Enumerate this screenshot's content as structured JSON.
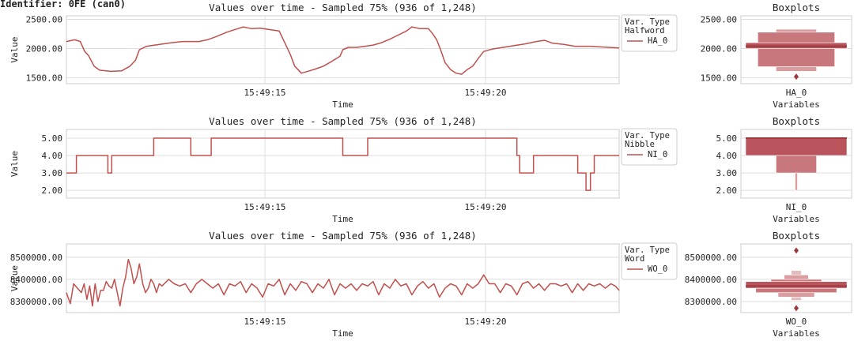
{
  "header": {
    "identifier": "Identifier: 0FE (can0)"
  },
  "colors": {
    "series": "#c0504d",
    "box_dark": "#9e3a3e",
    "grid": "#dddddd",
    "frame": "#cccccc"
  },
  "chart_data": [
    {
      "type": "line",
      "title": "Values over time - Sampled 75% (936 of 1,248)",
      "xlabel": "Time",
      "ylabel": "Value",
      "x_ticks": [
        "15:49:15",
        "15:49:20"
      ],
      "y_ticks": [
        "1500.00",
        "2000.00",
        "2500.00"
      ],
      "ylim": [
        1400,
        2560
      ],
      "legend": {
        "title": "Var. Type\nHalfword",
        "placement": "right",
        "entries": [
          "HA_0"
        ]
      },
      "series": [
        {
          "name": "HA_0",
          "points": [
            [
              0,
              2120
            ],
            [
              1.5,
              2150
            ],
            [
              2.5,
              2120
            ],
            [
              3.3,
              1950
            ],
            [
              4,
              1880
            ],
            [
              5,
              1700
            ],
            [
              6,
              1630
            ],
            [
              8,
              1610
            ],
            [
              10,
              1620
            ],
            [
              11.5,
              1700
            ],
            [
              12.5,
              1800
            ],
            [
              13.2,
              1980
            ],
            [
              14.5,
              2040
            ],
            [
              16,
              2060
            ],
            [
              19,
              2100
            ],
            [
              21,
              2120
            ],
            [
              24,
              2120
            ],
            [
              25.5,
              2150
            ],
            [
              27,
              2200
            ],
            [
              29,
              2280
            ],
            [
              31,
              2340
            ],
            [
              32,
              2370
            ],
            [
              33.5,
              2340
            ],
            [
              35,
              2350
            ],
            [
              37,
              2320
            ],
            [
              38.5,
              2300
            ],
            [
              39.5,
              2100
            ],
            [
              40.5,
              1900
            ],
            [
              41.3,
              1700
            ],
            [
              42.5,
              1580
            ],
            [
              44,
              1620
            ],
            [
              45,
              1650
            ],
            [
              46.5,
              1700
            ],
            [
              48,
              1780
            ],
            [
              49.5,
              1870
            ],
            [
              50,
              1980
            ],
            [
              51,
              2020
            ],
            [
              52.5,
              2020
            ],
            [
              54,
              2040
            ],
            [
              55.5,
              2060
            ],
            [
              57,
              2100
            ],
            [
              58.5,
              2160
            ],
            [
              60,
              2230
            ],
            [
              61.5,
              2300
            ],
            [
              62.5,
              2370
            ],
            [
              64,
              2340
            ],
            [
              65.5,
              2340
            ],
            [
              66.2,
              2260
            ],
            [
              67,
              2150
            ],
            [
              67.7,
              1980
            ],
            [
              68.5,
              1760
            ],
            [
              69.5,
              1640
            ],
            [
              70.5,
              1580
            ],
            [
              71.5,
              1560
            ],
            [
              72.5,
              1640
            ],
            [
              73.5,
              1700
            ],
            [
              74.5,
              1830
            ],
            [
              75.5,
              1950
            ],
            [
              77,
              1990
            ],
            [
              79,
              2020
            ],
            [
              81,
              2050
            ],
            [
              83,
              2080
            ],
            [
              85,
              2120
            ],
            [
              86.5,
              2140
            ],
            [
              88,
              2090
            ],
            [
              90,
              2070
            ],
            [
              92,
              2040
            ],
            [
              95,
              2040
            ],
            [
              98,
              2020
            ],
            [
              100,
              2010
            ]
          ]
        }
      ]
    },
    {
      "type": "line",
      "title": "Values over time - Sampled 75% (936 of 1,248)",
      "xlabel": "Time",
      "ylabel": "Value",
      "x_ticks": [
        "15:49:15",
        "15:49:20"
      ],
      "y_ticks": [
        "2.00",
        "3.00",
        "4.00",
        "5.00"
      ],
      "ylim": [
        1.55,
        5.5
      ],
      "legend": {
        "title": "Var. Type\nNibble",
        "placement": "right",
        "entries": [
          "NI_0"
        ]
      },
      "series": [
        {
          "name": "NI_0",
          "points": [
            [
              0,
              3
            ],
            [
              1.8,
              3
            ],
            [
              1.8,
              4
            ],
            [
              7.5,
              4
            ],
            [
              7.5,
              3
            ],
            [
              8.2,
              3
            ],
            [
              8.2,
              4
            ],
            [
              15.8,
              4
            ],
            [
              15.8,
              5
            ],
            [
              22.5,
              5
            ],
            [
              22.5,
              4
            ],
            [
              26.2,
              4
            ],
            [
              26.2,
              5
            ],
            [
              50,
              5
            ],
            [
              50,
              4
            ],
            [
              54.5,
              4
            ],
            [
              54.5,
              5
            ],
            [
              81.5,
              5
            ],
            [
              81.5,
              4
            ],
            [
              82,
              4
            ],
            [
              82,
              3
            ],
            [
              84.5,
              3
            ],
            [
              84.5,
              4
            ],
            [
              92.5,
              4
            ],
            [
              92.5,
              3
            ],
            [
              94,
              3
            ],
            [
              94,
              2
            ],
            [
              94.8,
              2
            ],
            [
              94.8,
              3
            ],
            [
              95.5,
              3
            ],
            [
              95.5,
              4
            ],
            [
              100,
              4
            ]
          ]
        }
      ]
    },
    {
      "type": "line",
      "title": "Values over time - Sampled 75% (936 of 1,248)",
      "xlabel": "Time",
      "ylabel": "Value",
      "x_ticks": [
        "15:49:15",
        "15:49:20"
      ],
      "y_ticks": [
        "8300000.00",
        "8400000.00",
        "8500000.00"
      ],
      "ylim": [
        8250000,
        8560000
      ],
      "legend": {
        "title": "Var. Type\nWord",
        "placement": "right",
        "entries": [
          "WO_0"
        ]
      },
      "series": [
        {
          "name": "WO_0",
          "points": [
            [
              0,
              8340000
            ],
            [
              0.7,
              8290000
            ],
            [
              1.3,
              8380000
            ],
            [
              2,
              8360000
            ],
            [
              2.7,
              8340000
            ],
            [
              3.2,
              8380000
            ],
            [
              3.7,
              8310000
            ],
            [
              4.2,
              8370000
            ],
            [
              4.7,
              8280000
            ],
            [
              5.2,
              8380000
            ],
            [
              5.7,
              8300000
            ],
            [
              6.2,
              8350000
            ],
            [
              6.7,
              8350000
            ],
            [
              7.2,
              8390000
            ],
            [
              7.7,
              8370000
            ],
            [
              8.2,
              8360000
            ],
            [
              8.7,
              8400000
            ],
            [
              9.2,
              8340000
            ],
            [
              9.7,
              8280000
            ],
            [
              10.2,
              8360000
            ],
            [
              10.7,
              8410000
            ],
            [
              11.2,
              8490000
            ],
            [
              11.7,
              8450000
            ],
            [
              12.2,
              8380000
            ],
            [
              12.7,
              8410000
            ],
            [
              13.2,
              8470000
            ],
            [
              13.8,
              8380000
            ],
            [
              14.3,
              8340000
            ],
            [
              14.8,
              8360000
            ],
            [
              15.3,
              8400000
            ],
            [
              15.8,
              8380000
            ],
            [
              16.3,
              8340000
            ],
            [
              16.8,
              8380000
            ],
            [
              17.3,
              8370000
            ],
            [
              18.5,
              8400000
            ],
            [
              19.5,
              8380000
            ],
            [
              20.5,
              8370000
            ],
            [
              21.5,
              8380000
            ],
            [
              22.5,
              8340000
            ],
            [
              23.5,
              8380000
            ],
            [
              24.5,
              8400000
            ],
            [
              25.5,
              8380000
            ],
            [
              26.5,
              8360000
            ],
            [
              27.5,
              8380000
            ],
            [
              28.5,
              8330000
            ],
            [
              29.5,
              8380000
            ],
            [
              30.5,
              8370000
            ],
            [
              31.5,
              8390000
            ],
            [
              32.5,
              8340000
            ],
            [
              33.5,
              8380000
            ],
            [
              34.5,
              8360000
            ],
            [
              35.5,
              8320000
            ],
            [
              36.5,
              8380000
            ],
            [
              37.5,
              8370000
            ],
            [
              38.5,
              8400000
            ],
            [
              39.5,
              8330000
            ],
            [
              40.5,
              8380000
            ],
            [
              41.5,
              8350000
            ],
            [
              42.5,
              8390000
            ],
            [
              43.5,
              8380000
            ],
            [
              44.5,
              8340000
            ],
            [
              45.5,
              8380000
            ],
            [
              46.5,
              8360000
            ],
            [
              47.5,
              8400000
            ],
            [
              48.5,
              8330000
            ],
            [
              49.5,
              8380000
            ],
            [
              50.5,
              8360000
            ],
            [
              51.5,
              8380000
            ],
            [
              52.5,
              8350000
            ],
            [
              53.5,
              8380000
            ],
            [
              54.5,
              8370000
            ],
            [
              55.5,
              8390000
            ],
            [
              56.5,
              8330000
            ],
            [
              57.5,
              8380000
            ],
            [
              58.5,
              8360000
            ],
            [
              59.5,
              8400000
            ],
            [
              60.5,
              8370000
            ],
            [
              61.5,
              8380000
            ],
            [
              62.5,
              8330000
            ],
            [
              63.5,
              8370000
            ],
            [
              64.5,
              8390000
            ],
            [
              65.5,
              8360000
            ],
            [
              66.5,
              8380000
            ],
            [
              67.5,
              8320000
            ],
            [
              68.5,
              8360000
            ],
            [
              69.5,
              8380000
            ],
            [
              70.5,
              8370000
            ],
            [
              71.5,
              8330000
            ],
            [
              72.5,
              8380000
            ],
            [
              73.5,
              8360000
            ],
            [
              74.5,
              8380000
            ],
            [
              75.5,
              8420000
            ],
            [
              76.5,
              8380000
            ],
            [
              77.5,
              8380000
            ],
            [
              78.5,
              8340000
            ],
            [
              79.5,
              8380000
            ],
            [
              80.5,
              8370000
            ],
            [
              81.5,
              8330000
            ],
            [
              82.5,
              8380000
            ],
            [
              83.5,
              8390000
            ],
            [
              84.5,
              8360000
            ],
            [
              85.5,
              8380000
            ],
            [
              86.5,
              8350000
            ],
            [
              87.5,
              8380000
            ],
            [
              88.5,
              8380000
            ],
            [
              89.5,
              8370000
            ],
            [
              90.5,
              8380000
            ],
            [
              91.5,
              8340000
            ],
            [
              92.5,
              8380000
            ],
            [
              93.5,
              8350000
            ],
            [
              94.5,
              8380000
            ],
            [
              95.5,
              8370000
            ],
            [
              96.5,
              8380000
            ],
            [
              97.5,
              8360000
            ],
            [
              98.5,
              8380000
            ],
            [
              99.3,
              8370000
            ],
            [
              100,
              8350000
            ]
          ]
        }
      ]
    },
    {
      "type": "boxplot",
      "title": "Boxplots",
      "xlabel": "Variables",
      "category": "HA_0",
      "y_ticks": [
        "1500.00",
        "2000.00",
        "2500.00"
      ],
      "ylim": [
        1400,
        2560
      ],
      "median": 2040,
      "boxes": [
        {
          "low": 2000,
          "high": 2100,
          "half_width": 0.5,
          "shade": 0
        },
        {
          "low": 1690,
          "high": 2000,
          "half_width": 0.38,
          "shade": 1
        },
        {
          "low": 2100,
          "high": 2280,
          "half_width": 0.38,
          "shade": 1
        },
        {
          "low": 1610,
          "high": 1690,
          "half_width": 0.2,
          "shade": 2
        },
        {
          "low": 2280,
          "high": 2330,
          "half_width": 0.2,
          "shade": 2
        }
      ],
      "outliers": [
        1520
      ]
    },
    {
      "type": "boxplot",
      "title": "Boxplots",
      "xlabel": "Variables",
      "category": "NI_0",
      "y_ticks": [
        "2.00",
        "3.00",
        "4.00",
        "5.00"
      ],
      "ylim": [
        1.55,
        5.5
      ],
      "median": 5,
      "boxes": [
        {
          "low": 4,
          "high": 5,
          "half_width": 0.5,
          "shade": 0
        },
        {
          "low": 3,
          "high": 4,
          "half_width": 0.2,
          "shade": 1
        },
        {
          "low": 2,
          "high": 3,
          "half_width": 0.01,
          "shade": 2
        }
      ],
      "outliers": []
    },
    {
      "type": "boxplot",
      "title": "Boxplots",
      "xlabel": "Variables",
      "category": "WO_0",
      "y_ticks": [
        "8300000.00",
        "8400000.00",
        "8500000.00"
      ],
      "ylim": [
        8250000,
        8560000
      ],
      "median": 8370000,
      "boxes": [
        {
          "low": 8360000,
          "high": 8390000,
          "half_width": 0.5,
          "shade": 0
        },
        {
          "low": 8340000,
          "high": 8360000,
          "half_width": 0.4,
          "shade": 1
        },
        {
          "low": 8390000,
          "high": 8400000,
          "half_width": 0.25,
          "shade": 1
        },
        {
          "low": 8320000,
          "high": 8340000,
          "half_width": 0.18,
          "shade": 2
        },
        {
          "low": 8400000,
          "high": 8420000,
          "half_width": 0.12,
          "shade": 2
        },
        {
          "low": 8305000,
          "high": 8320000,
          "half_width": 0.05,
          "shade": 3
        },
        {
          "low": 8420000,
          "high": 8440000,
          "half_width": 0.05,
          "shade": 3
        }
      ],
      "outliers": [
        8530000,
        8270000
      ]
    }
  ]
}
